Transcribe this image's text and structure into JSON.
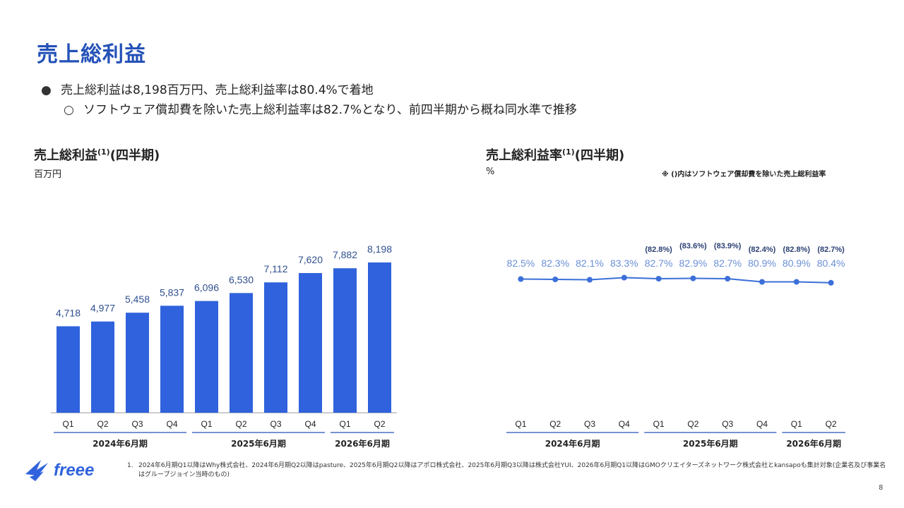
{
  "title": "売上総利益",
  "bullets": [
    {
      "marker": "●",
      "text": "売上総利益は8,198百万円、売上総利益率は80.4%で着地"
    },
    {
      "marker": "○",
      "text": "ソフトウェア償却費を除いた売上総利益率は82.7%となり、前四半期から概ね同水準で推移"
    }
  ],
  "left_section": {
    "title": "売上総利益",
    "superscript": "(1)",
    "suffix": "(四半期)",
    "unit": "百万円"
  },
  "right_section": {
    "title": "売上総利益率",
    "superscript": "(1)",
    "suffix": "(四半期)",
    "unit": "%",
    "note": "※ ()内はソフトウェア償却費を除いた売上総利益率"
  },
  "footnote": {
    "num": "1.",
    "text": "2024年6月期Q1以降はWhy株式会社、2024年6月期Q2以降はpasture、2025年6月期Q2以降はアポロ株式会社、2025年6月期Q3以降は株式会社YUI、2026年6月期Q1以降はGMOクリエイターズネットワーク株式会社とkansapoも集計対象(企業名及び事業名はグループジョイン当時のもの)"
  },
  "logo_text": "freee",
  "page_number": "8",
  "colors": {
    "accent": "#2451b8",
    "bar": "#2f62dc",
    "line": "#3b6fd9",
    "label": "#2f4f8f"
  },
  "chart_data": [
    {
      "type": "bar",
      "title": "売上総利益(四半期)",
      "ylabel": "百万円",
      "categories": [
        "Q1",
        "Q2",
        "Q3",
        "Q4",
        "Q1",
        "Q2",
        "Q3",
        "Q4",
        "Q1",
        "Q2"
      ],
      "values": [
        4718,
        4977,
        5458,
        5837,
        6096,
        6530,
        7112,
        7620,
        7882,
        8198
      ],
      "value_labels": [
        "4,718",
        "4,977",
        "5,458",
        "5,837",
        "6,096",
        "6,530",
        "7,112",
        "7,620",
        "7,882",
        "8,198"
      ],
      "groups": [
        {
          "label": "2024年6月期",
          "count": 4
        },
        {
          "label": "2025年6月期",
          "count": 4
        },
        {
          "label": "2026年6月期",
          "count": 2
        }
      ],
      "ylim": [
        0,
        9000
      ]
    },
    {
      "type": "line",
      "title": "売上総利益率(四半期)",
      "ylabel": "%",
      "categories": [
        "Q1",
        "Q2",
        "Q3",
        "Q4",
        "Q1",
        "Q2",
        "Q3",
        "Q4",
        "Q1",
        "Q2"
      ],
      "values": [
        82.5,
        82.3,
        82.1,
        83.3,
        82.7,
        82.9,
        82.7,
        80.9,
        80.9,
        80.4
      ],
      "value_labels": [
        "82.5%",
        "82.3%",
        "82.1%",
        "83.3%",
        "82.7%",
        "82.9%",
        "82.7%",
        "80.9%",
        "80.9%",
        "80.4%"
      ],
      "adjusted_labels": [
        "",
        "",
        "",
        "",
        "(82.8%)",
        "(83.6%)",
        "(83.9%)",
        "(82.4%)",
        "(82.8%)",
        "(82.7%)"
      ],
      "groups": [
        {
          "label": "2024年6月期",
          "count": 4
        },
        {
          "label": "2025年6月期",
          "count": 4
        },
        {
          "label": "2026年6月期",
          "count": 2
        }
      ],
      "ylim": [
        0,
        100
      ]
    }
  ]
}
